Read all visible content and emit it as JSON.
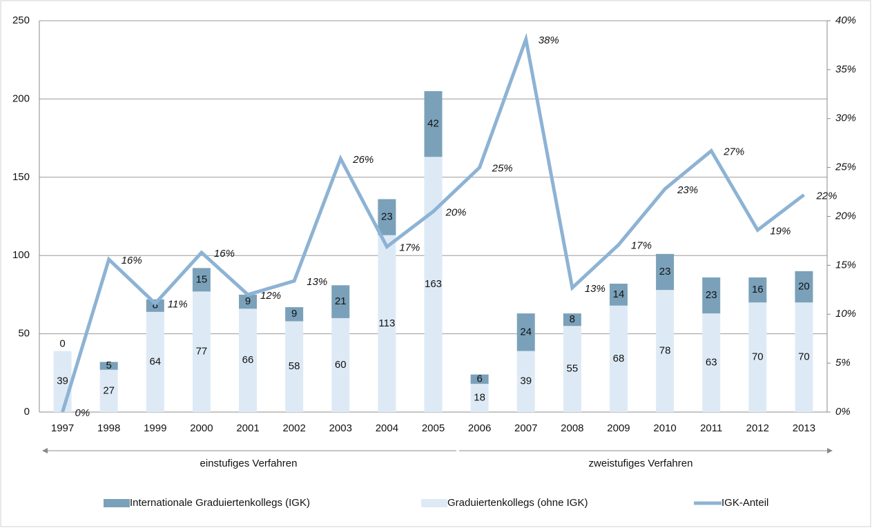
{
  "chart_data": {
    "type": "bar",
    "stacked": true,
    "categories": [
      "1997",
      "1998",
      "1999",
      "2000",
      "2001",
      "2002",
      "2003",
      "2004",
      "2005",
      "2006",
      "2007",
      "2008",
      "2009",
      "2010",
      "2011",
      "2012",
      "2013"
    ],
    "series": [
      {
        "name": "Internationale Graduiertenkollegs (IGK)",
        "kind": "bar",
        "color": "#7aa1b9",
        "values": [
          0,
          5,
          8,
          15,
          9,
          9,
          21,
          23,
          42,
          6,
          24,
          8,
          14,
          23,
          23,
          16,
          20
        ]
      },
      {
        "name": "Graduiertenkollegs (ohne IGK)",
        "kind": "bar",
        "color": "#ddeaf6",
        "values": [
          39,
          27,
          64,
          77,
          66,
          58,
          60,
          113,
          163,
          18,
          39,
          55,
          68,
          78,
          63,
          70,
          70
        ]
      },
      {
        "name": "IGK-Anteil",
        "kind": "line",
        "axis": "y2",
        "color": "#8db3d4",
        "values": [
          0,
          15.6,
          11.1,
          16.3,
          12,
          13.4,
          25.9,
          16.9,
          20.5,
          25,
          38.1,
          12.7,
          17.1,
          22.8,
          26.7,
          18.6,
          22.2
        ],
        "value_labels": [
          "0%",
          "16%",
          "11%",
          "16%",
          "12%",
          "13%",
          "26%",
          "17%",
          "20%",
          "25%",
          "38%",
          "13%",
          "17%",
          "23%",
          "27%",
          "19%",
          "22%"
        ]
      }
    ],
    "ylim": [
      0,
      250
    ],
    "yticks": [
      0,
      50,
      100,
      150,
      200,
      250
    ],
    "y2lim": [
      0,
      40
    ],
    "y2ticks": [
      {
        "value": 0,
        "label": "0%"
      },
      {
        "value": 5,
        "label": "5%"
      },
      {
        "value": 10,
        "label": "10%"
      },
      {
        "value": 15,
        "label": "15%"
      },
      {
        "value": 20,
        "label": "20%"
      },
      {
        "value": 25,
        "label": "25%"
      },
      {
        "value": 30,
        "label": "30%"
      },
      {
        "value": 35,
        "label": "35%"
      },
      {
        "value": 40,
        "label": "40%"
      }
    ],
    "grid": true,
    "legend": "bottom",
    "annotations": [
      "einstufiges Verfahren",
      "zweistufiges Verfahren"
    ]
  }
}
